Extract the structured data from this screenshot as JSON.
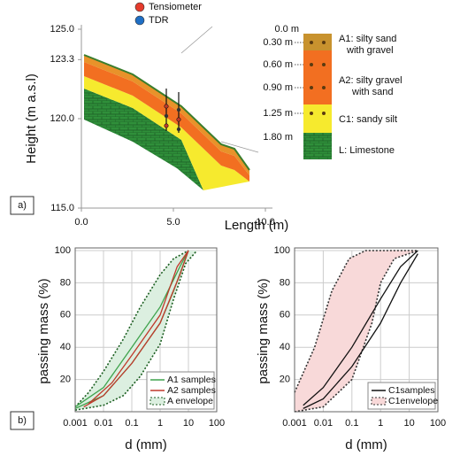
{
  "chart_data": [
    {
      "type": "profile",
      "panel_label": "a)",
      "xlabel": "Length (m)",
      "ylabel": "Height (m a.s.l)",
      "xlim": [
        0,
        10
      ],
      "ylim": [
        115,
        125
      ],
      "xticks": [
        {
          "value": 0,
          "label": "0.0"
        },
        {
          "value": 5,
          "label": "5.0"
        },
        {
          "value": 10,
          "label": "10.0"
        }
      ],
      "yticks": [
        {
          "value": 115,
          "label": "115.0"
        },
        {
          "value": 120,
          "label": "120.0"
        },
        {
          "value": 123.3,
          "label": "123.3"
        },
        {
          "value": 125,
          "label": "125.0"
        }
      ],
      "legend": [
        {
          "name": "Tensiometer",
          "color": "#e53b2c"
        },
        {
          "name": "TDR",
          "color": "#1f6fc5"
        }
      ]
    },
    {
      "type": "grain_size",
      "panel_label": "b)",
      "xlabel": "d (mm)",
      "ylabel": "passing mass (%)",
      "xscale": "log",
      "xlim": [
        0.001,
        100
      ],
      "ylim": [
        0,
        100
      ],
      "xticks": [
        0.001,
        0.01,
        0.1,
        1,
        10,
        100
      ],
      "yticks": [
        20,
        40,
        60,
        80,
        100
      ],
      "grid": true,
      "legend_loc": "lower right",
      "series": [
        {
          "name": "A envelope",
          "color": "#1b5e20",
          "fill": "#dcefe0",
          "style": "dotted",
          "lines": [
            {
              "x": [
                0.001,
                0.003,
                0.01,
                0.05,
                0.2,
                1,
                3,
                10
              ],
              "values": [
                3,
                12,
                25,
                45,
                65,
                85,
                95,
                100
              ]
            },
            {
              "x": [
                0.001,
                0.01,
                0.05,
                0.2,
                1,
                3,
                8,
                20
              ],
              "values": [
                1,
                4,
                10,
                22,
                42,
                70,
                92,
                100
              ]
            }
          ]
        },
        {
          "name": "A1 samples",
          "color": "#3fa34d",
          "style": "solid",
          "lines": [
            {
              "x": [
                0.001,
                0.01,
                0.1,
                1,
                3,
                10
              ],
              "values": [
                2,
                10,
                30,
                55,
                75,
                100
              ]
            },
            {
              "x": [
                0.001,
                0.01,
                0.1,
                1,
                5,
                10
              ],
              "values": [
                3,
                15,
                40,
                65,
                90,
                100
              ]
            }
          ]
        },
        {
          "name": "A2 samples",
          "color": "#c0392b",
          "style": "solid",
          "lines": [
            {
              "x": [
                0.002,
                0.01,
                0.1,
                1,
                5,
                10
              ],
              "values": [
                3,
                10,
                30,
                55,
                85,
                100
              ]
            },
            {
              "x": [
                0.003,
                0.02,
                0.1,
                1,
                4,
                10
              ],
              "values": [
                5,
                18,
                35,
                60,
                90,
                100
              ]
            }
          ]
        }
      ]
    },
    {
      "type": "grain_size",
      "xlabel": "d (mm)",
      "ylabel": "passing mass (%)",
      "xscale": "log",
      "xlim": [
        0.001,
        100
      ],
      "ylim": [
        0,
        100
      ],
      "xticks": [
        0.001,
        0.01,
        0.1,
        1,
        10,
        100
      ],
      "yticks": [
        20,
        40,
        60,
        80,
        100
      ],
      "grid": true,
      "legend_loc": "lower right",
      "series": [
        {
          "name": "C1envelope",
          "color": "#333333",
          "fill": "#f8d9d9",
          "style": "dotted",
          "lines": [
            {
              "x": [
                0.001,
                0.005,
                0.02,
                0.08,
                0.3,
                20
              ],
              "values": [
                12,
                40,
                75,
                95,
                100,
                100
              ]
            },
            {
              "x": [
                0.001,
                0.01,
                0.1,
                0.5,
                1,
                3,
                20
              ],
              "values": [
                0,
                3,
                20,
                55,
                80,
                95,
                100
              ]
            }
          ]
        },
        {
          "name": "C1samples",
          "color": "#111111",
          "style": "solid",
          "lines": [
            {
              "x": [
                0.002,
                0.01,
                0.1,
                1,
                5,
                20
              ],
              "values": [
                4,
                15,
                40,
                70,
                90,
                100
              ]
            },
            {
              "x": [
                0.002,
                0.01,
                0.1,
                1,
                5,
                20
              ],
              "values": [
                2,
                8,
                28,
                55,
                80,
                98
              ]
            }
          ]
        }
      ]
    }
  ],
  "soil_column": {
    "depths": [
      "0.0 m",
      "0.30 m",
      "0.60 m",
      "0.90 m",
      "1.25 m",
      "1.80 m"
    ],
    "layers": [
      {
        "label": [
          "A1: silty sand",
          "with gravel"
        ],
        "color": "#c8922e"
      },
      {
        "label": [
          "A2: silty gravel",
          "with sand"
        ],
        "color": "#f26f21"
      },
      {
        "label": [
          "C1: sandy silt"
        ],
        "color": "#f6ea2e"
      },
      {
        "label": [
          "L: Limestone"
        ],
        "color": "#2f8f3a"
      }
    ]
  }
}
